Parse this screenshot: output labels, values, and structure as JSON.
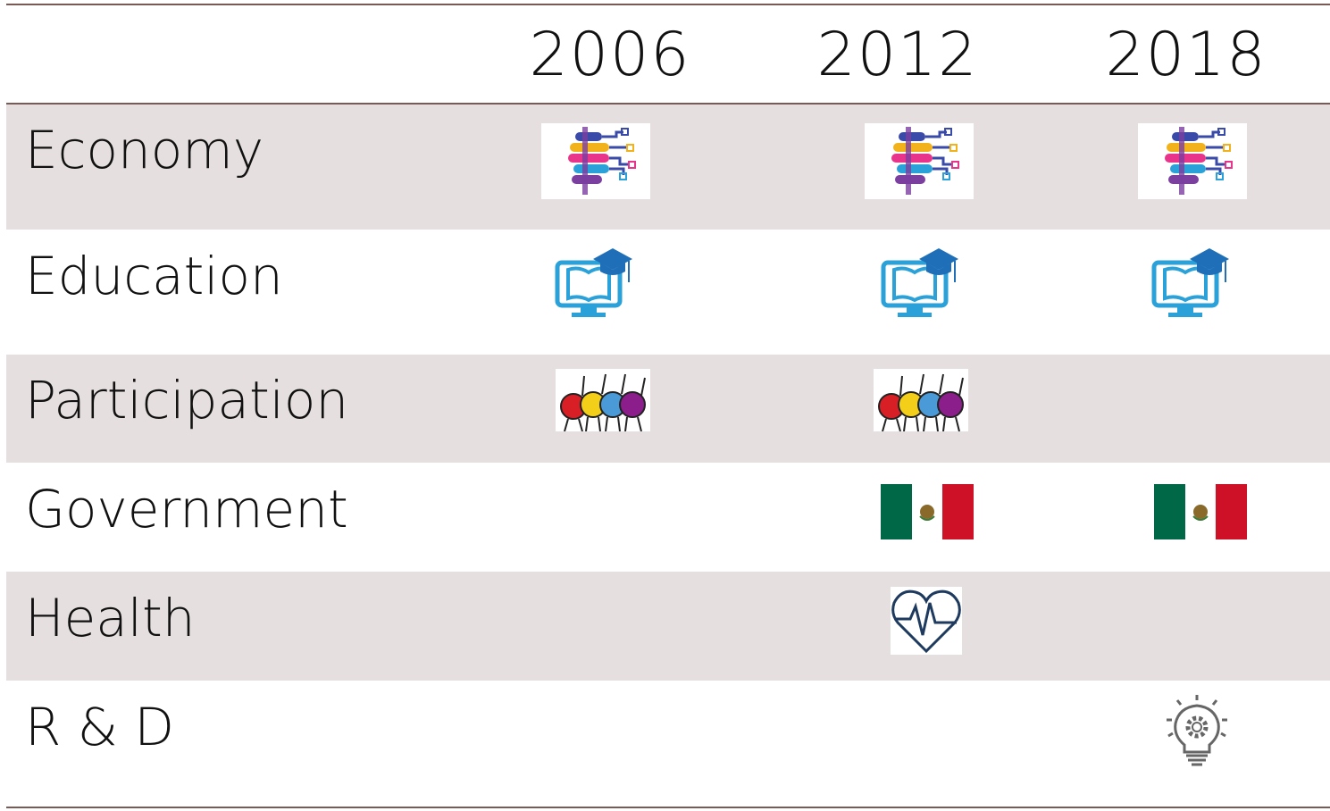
{
  "table": {
    "columns": [
      "2006",
      "2012",
      "2018"
    ],
    "rows": [
      "Economy",
      "Education",
      "Participation",
      "Government",
      "Health",
      "R & D"
    ]
  }
}
